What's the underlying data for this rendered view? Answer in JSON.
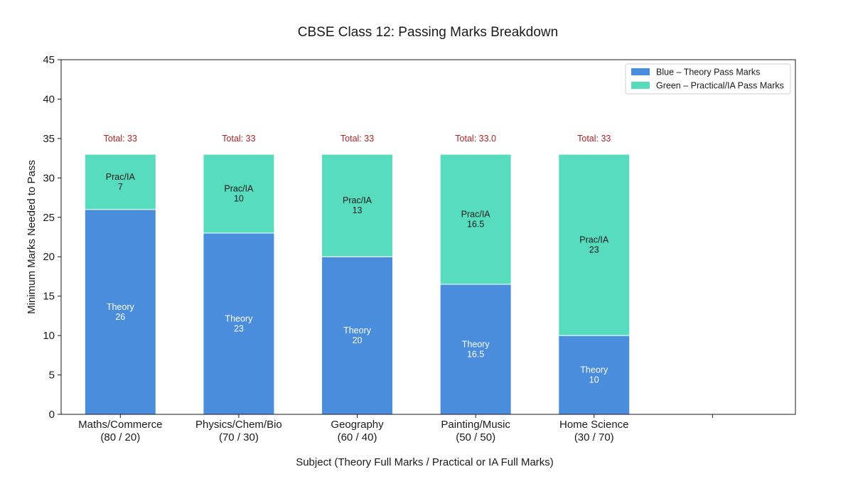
{
  "chart_data": {
    "type": "bar",
    "stacked": true,
    "title": "CBSE Class 12: Passing Marks Breakdown",
    "xlabel": "Subject (Theory Full Marks / Practical or IA Full Marks)",
    "ylabel": "Minimum Marks Needed to Pass",
    "ylim": [
      0,
      45
    ],
    "yticks": [
      "0",
      "5",
      "10",
      "15",
      "20",
      "25",
      "30",
      "35",
      "40",
      "45"
    ],
    "grid": false,
    "legend_position": "top-right",
    "categories": [
      {
        "line1": "Maths/Commerce",
        "line2": "(80 / 20)"
      },
      {
        "line1": "Physics/Chem/Bio",
        "line2": "(70 / 30)"
      },
      {
        "line1": "Geography",
        "line2": "(60 / 40)"
      },
      {
        "line1": "Painting/Music",
        "line2": "(50 / 50)"
      },
      {
        "line1": "Home Science",
        "line2": "(30 / 70)"
      }
    ],
    "series": [
      {
        "name": "Blue – Theory Pass Marks",
        "color": "#4a8ddc",
        "segment_label": "Theory",
        "values": [
          26,
          23,
          20,
          16.5,
          10
        ],
        "value_labels": [
          "26",
          "23",
          "20",
          "16.5",
          "10"
        ]
      },
      {
        "name": "Green – Practical/IA Pass Marks",
        "color": "#57dcbe",
        "segment_label": "Prac/IA",
        "values": [
          7,
          10,
          13,
          16.5,
          23
        ],
        "value_labels": [
          "7",
          "10",
          "13",
          "16.5",
          "23"
        ]
      }
    ],
    "totals": [
      "Total: 33",
      "Total: 33",
      "Total: 33",
      "Total: 33.0",
      "Total: 33"
    ],
    "total_color": "#b22222"
  }
}
